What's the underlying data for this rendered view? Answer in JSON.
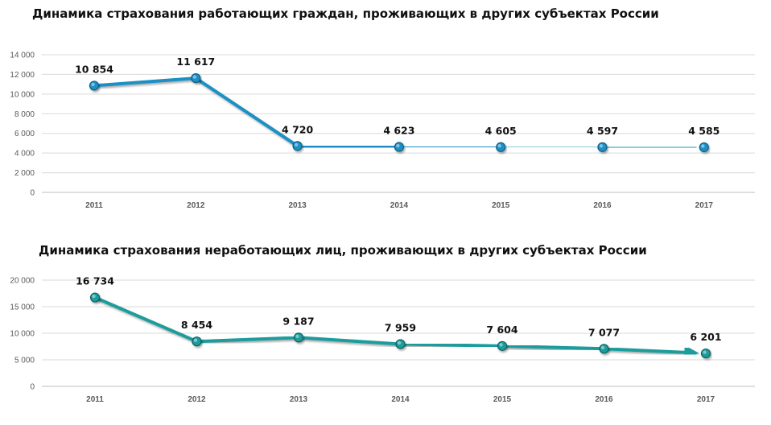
{
  "chart_data": [
    {
      "type": "line",
      "title": "Динамика страхования работающих граждан, проживающих в других субъектах России",
      "categories": [
        "2011",
        "2012",
        "2013",
        "2014",
        "2015",
        "2016",
        "2017"
      ],
      "values": [
        10854,
        11617,
        4720,
        4623,
        4605,
        4597,
        4585
      ],
      "value_labels": [
        "10 854",
        "11 617",
        "4 720",
        "4 623",
        "4 605",
        "4 597",
        "4 585"
      ],
      "y_ticks": [
        0,
        2000,
        4000,
        6000,
        8000,
        10000,
        12000,
        14000
      ],
      "y_tick_labels": [
        "0",
        "2 000",
        "4 000",
        "6 000",
        "8 000",
        "10 000",
        "12 000",
        "14 000"
      ],
      "ylim": [
        0,
        14000
      ],
      "xlabel": "",
      "ylabel": "",
      "grid": true,
      "color": "#1a90c4"
    },
    {
      "type": "line",
      "title": "Динамика страхования неработающих лиц, проживающих в других субъектах России",
      "categories": [
        "2011",
        "2012",
        "2013",
        "2014",
        "2015",
        "2016",
        "2017"
      ],
      "values": [
        16734,
        8454,
        9187,
        7959,
        7604,
        7077,
        6201
      ],
      "value_labels": [
        "16 734",
        "8 454",
        "9 187",
        "7 959",
        "7 604",
        "7 077",
        "6 201"
      ],
      "y_ticks": [
        0,
        5000,
        10000,
        15000,
        20000
      ],
      "y_tick_labels": [
        "0",
        "5 000",
        "10 000",
        "15 000",
        "20 000"
      ],
      "ylim": [
        0,
        20000
      ],
      "xlabel": "",
      "ylabel": "",
      "grid": true,
      "color": "#1a9c9c"
    }
  ]
}
